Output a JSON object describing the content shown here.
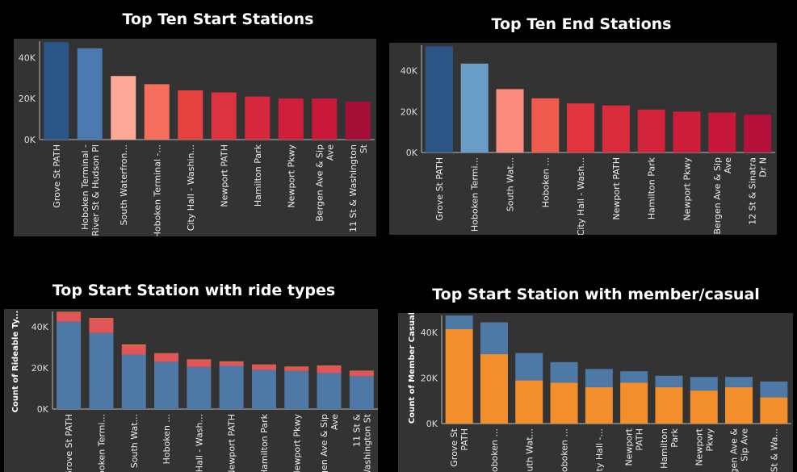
{
  "chart_data": [
    {
      "type": "bar",
      "title": "Top Ten Start Stations",
      "ylabel": "",
      "ylim": [
        0,
        48000
      ],
      "yticks": [
        "40K",
        "20K",
        "0K"
      ],
      "categories": [
        [
          "Grove St PATH"
        ],
        [
          "Hoboken Terminal -",
          "River St & Hudson Pl"
        ],
        [
          "South Waterfron..."
        ],
        [
          "Hoboken Terminal -..."
        ],
        [
          "City Hall - Washin..."
        ],
        [
          "Newport PATH"
        ],
        [
          "Hamilton Park"
        ],
        [
          "Newport Pkwy"
        ],
        [
          "Bergen Ave & Sip",
          "Ave"
        ],
        [
          "11 St & Washington",
          "St"
        ]
      ],
      "values": [
        47500,
        44500,
        31000,
        27000,
        24000,
        23000,
        21000,
        20000,
        20000,
        18500
      ],
      "colors": [
        "#2c5687",
        "#4a7ab0",
        "#fca797",
        "#f56f5c",
        "#e5423f",
        "#dd3340",
        "#d5283d",
        "#cf1f3b",
        "#c9193b",
        "#a50f37"
      ]
    },
    {
      "type": "bar",
      "title": "Top Ten End Stations",
      "ylabel": "",
      "ylim": [
        0,
        52500
      ],
      "yticks": [
        "40K",
        "20K",
        "0K"
      ],
      "categories": [
        [
          "Grove St PATH"
        ],
        [
          "Hoboken Termi..."
        ],
        [
          "South Wat..."
        ],
        [
          "Hoboken ..."
        ],
        [
          "City Hall - Wash..."
        ],
        [
          "Newport PATH"
        ],
        [
          "Hamilton Park"
        ],
        [
          "Newport Pkwy"
        ],
        [
          "Bergen Ave & Sip",
          "Ave"
        ],
        [
          "12 St & Sinatra",
          "Dr N"
        ]
      ],
      "values": [
        52000,
        43500,
        31000,
        26500,
        24000,
        23000,
        21000,
        20000,
        19500,
        18500
      ],
      "colors": [
        "#2c5687",
        "#6a9dc8",
        "#fc8d7e",
        "#ef5b4e",
        "#e0353f",
        "#d92d3e",
        "#d2253c",
        "#cd1d3b",
        "#c7173a",
        "#b51039"
      ]
    },
    {
      "type": "bar",
      "stacked": true,
      "title": "Top Start Station with ride types",
      "ylabel": "Count of Rideable Ty...",
      "ylim": [
        0,
        47500
      ],
      "yticks": [
        "40K",
        "20K",
        "0K"
      ],
      "categories": [
        [
          "Grove St PATH"
        ],
        [
          "Hoboken Termi..."
        ],
        [
          "South Wat..."
        ],
        [
          "Hoboken ..."
        ],
        [
          "City Hall - Wash..."
        ],
        [
          "Newport PATH"
        ],
        [
          "Hamilton Park"
        ],
        [
          "Newport Pkwy"
        ],
        [
          "Bergen Ave & Sip",
          "Ave"
        ],
        [
          "11 St &",
          "Washington St"
        ]
      ],
      "series": [
        {
          "values": [
            42500,
            37000,
            26500,
            23000,
            20500,
            21000,
            19000,
            18500,
            17500,
            16000
          ],
          "color": "#4e79a7"
        },
        {
          "values": [
            4500,
            7000,
            4500,
            4000,
            3500,
            2000,
            2500,
            2000,
            3500,
            2500
          ],
          "color": "#e15759"
        },
        {
          "values": [
            300,
            300,
            400,
            200,
            200,
            200,
            200,
            200,
            200,
            200
          ],
          "color": "#f28e2b"
        }
      ]
    },
    {
      "type": "bar",
      "stacked": true,
      "title": "Top Start Station with member/casual",
      "ylabel": "Count of Member Casual",
      "ylim": [
        0,
        47500
      ],
      "yticks": [
        "40K",
        "20K",
        "0K"
      ],
      "categories": [
        [
          "Grove St",
          "PATH"
        ],
        [
          "Hoboken ..."
        ],
        [
          "South Wat..."
        ],
        [
          "Hoboken ..."
        ],
        [
          "City Hall -..."
        ],
        [
          "Newport",
          "PATH"
        ],
        [
          "Hamilton",
          "Park"
        ],
        [
          "Newport",
          "Pkwy"
        ],
        [
          "Bergen Ave &",
          "Sip Ave"
        ],
        [
          "11 St & Wa..."
        ]
      ],
      "series": [
        {
          "values": [
            41500,
            30500,
            19000,
            18000,
            16000,
            18000,
            16000,
            14500,
            16000,
            11500
          ],
          "color": "#f28e2b"
        },
        {
          "values": [
            6000,
            14000,
            12000,
            9000,
            8000,
            5000,
            5000,
            6000,
            4500,
            7000
          ],
          "color": "#4e79a7"
        }
      ]
    }
  ]
}
